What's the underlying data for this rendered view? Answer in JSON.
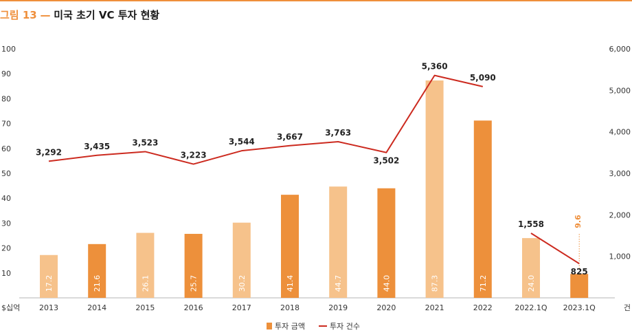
{
  "title": {
    "prefix": "그림 13",
    "dash": "—",
    "text": "미국 초기 VC 투자 현황"
  },
  "colors": {
    "bar_light": "#f6c28b",
    "bar_dark": "#ed903b",
    "line": "#cc2a1f",
    "accent": "#ef8f3b",
    "annotation": "#ef8f3b"
  },
  "chart_data": {
    "type": "bar",
    "categories": [
      "2013",
      "2014",
      "2015",
      "2016",
      "2017",
      "2018",
      "2019",
      "2020",
      "2021",
      "2022",
      "2022.1Q",
      "2023.1Q"
    ],
    "series": [
      {
        "name": "투자 금액",
        "type": "bar",
        "axis": "left",
        "values": [
          17.2,
          21.6,
          26.1,
          25.7,
          30.2,
          41.4,
          44.7,
          44.0,
          87.3,
          71.2,
          24.0,
          9.6
        ],
        "value_labels": [
          "17.2",
          "21.6",
          "26.1",
          "25.7",
          "30.2",
          "41.4",
          "44.7",
          "44.0",
          "87.3",
          "71.2",
          "24.0",
          "9.6"
        ],
        "shade": [
          "light",
          "dark",
          "light",
          "dark",
          "light",
          "dark",
          "light",
          "dark",
          "light",
          "dark",
          "light",
          "dark"
        ]
      },
      {
        "name": "투자 건수",
        "type": "line",
        "axis": "right",
        "values": [
          3292,
          3435,
          3523,
          3223,
          3544,
          3667,
          3763,
          3502,
          5360,
          5090,
          1558,
          825
        ],
        "value_labels": [
          "3,292",
          "3,435",
          "3,523",
          "3,223",
          "3,544",
          "3,667",
          "3,763",
          "3,502",
          "5,360",
          "5,090",
          "1,558",
          "825"
        ],
        "segments": [
          [
            0,
            9
          ],
          [
            10,
            11
          ]
        ]
      }
    ],
    "left_axis": {
      "unit_label": "$십억",
      "ylim": [
        0,
        100
      ],
      "ticks": [
        "100",
        "90",
        "80",
        "70",
        "60",
        "50",
        "40",
        "30",
        "20",
        "10"
      ],
      "tick_values": [
        100,
        90,
        80,
        70,
        60,
        50,
        40,
        30,
        20,
        10
      ]
    },
    "right_axis": {
      "unit_label": "건",
      "ylim": [
        0,
        6000
      ],
      "ticks": [
        "6,000",
        "5,000",
        "4,000",
        "3,000",
        "2,000",
        "1,000"
      ],
      "tick_values": [
        6000,
        5000,
        4000,
        3000,
        2000,
        1000
      ]
    },
    "legend": {
      "placement": "bottom-center",
      "items": [
        "투자 금액",
        "투자 건수"
      ]
    },
    "grid": false
  }
}
